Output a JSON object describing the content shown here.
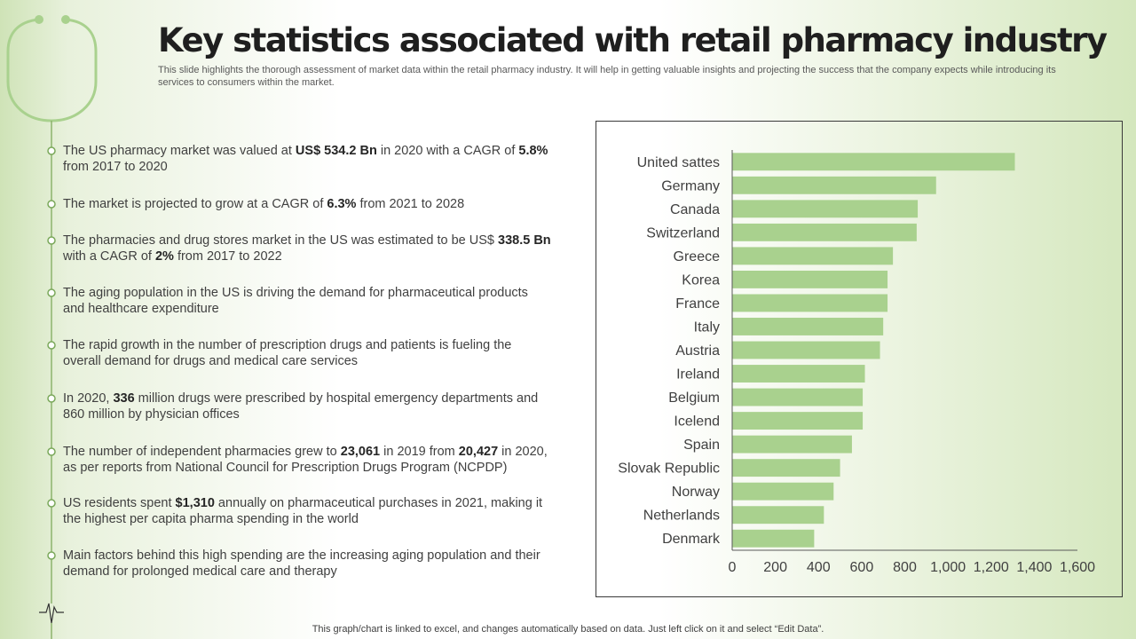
{
  "header": {
    "title": "Key statistics associated with retail pharmacy industry",
    "subtitle": "This slide highlights the thorough assessment of market data within the retail pharmacy industry. It will help in getting valuable insights and projecting the success that the company expects while introducing its services to consumers within the market."
  },
  "bullets": [
    {
      "parts": [
        {
          "t": "The US pharmacy market was valued at "
        },
        {
          "t": "US$ 534.2 Bn",
          "b": true
        },
        {
          "t": " in 2020 with a CAGR of "
        },
        {
          "t": "5.8%",
          "b": true
        },
        {
          "t": " from 2017 to 2020"
        }
      ]
    },
    {
      "parts": [
        {
          "t": "The market is projected to grow at a CAGR of "
        },
        {
          "t": "6.3%",
          "b": true
        },
        {
          "t": " from 2021 to 2028"
        }
      ]
    },
    {
      "parts": [
        {
          "t": "The pharmacies and drug stores market in the US was estimated to be US$ "
        },
        {
          "t": "338.5 Bn",
          "b": true
        },
        {
          "t": " with a CAGR of "
        },
        {
          "t": "2%",
          "b": true
        },
        {
          "t": " from 2017 to 2022"
        }
      ]
    },
    {
      "parts": [
        {
          "t": "The aging population in the US is driving the demand for pharmaceutical products and healthcare expenditure"
        }
      ]
    },
    {
      "parts": [
        {
          "t": "The rapid growth in the number of prescription drugs and patients is fueling the overall demand for drugs and medical care services"
        }
      ]
    },
    {
      "parts": [
        {
          "t": "In 2020, "
        },
        {
          "t": "336",
          "b": true
        },
        {
          "t": " million drugs were prescribed by hospital emergency departments and 860 million by physician offices"
        }
      ]
    },
    {
      "parts": [
        {
          "t": "The number of independent pharmacies grew to "
        },
        {
          "t": "23,061",
          "b": true
        },
        {
          "t": " in 2019 from "
        },
        {
          "t": "20,427",
          "b": true
        },
        {
          "t": " in 2020, as per reports from National Council for Prescription Drugs Program (NCPDP)"
        }
      ]
    },
    {
      "parts": [
        {
          "t": "US residents spent "
        },
        {
          "t": "$1,310",
          "b": true
        },
        {
          "t": " annually on pharmaceutical purchases in 2021, making it the highest per capita pharma spending in the world"
        }
      ]
    },
    {
      "parts": [
        {
          "t": "Main factors behind this high spending are the increasing aging population and their demand for prolonged medical care and therapy"
        }
      ]
    }
  ],
  "chart_data": {
    "type": "bar",
    "orientation": "horizontal",
    "title": "",
    "xlabel": "",
    "ylabel": "",
    "categories": [
      "United sattes",
      "Germany",
      "Canada",
      "Switzerland",
      "Greece",
      "Korea",
      "France",
      "Italy",
      "Austria",
      "Ireland",
      "Belgium",
      "Icelend",
      "Spain",
      "Slovak Republic",
      "Norway",
      "Netherlands",
      "Denmark"
    ],
    "values": [
      1310,
      945,
      860,
      855,
      745,
      720,
      720,
      700,
      685,
      615,
      605,
      605,
      555,
      500,
      470,
      425,
      380
    ],
    "xlim": [
      0,
      1600
    ],
    "xticks": [
      0,
      200,
      400,
      600,
      800,
      1000,
      1200,
      1400,
      1600
    ],
    "xtick_labels": [
      "0",
      "200",
      "400",
      "600",
      "800",
      "1,000",
      "1,200",
      "1,400",
      "1,600"
    ],
    "grid": false,
    "bar_color": "#a9d18e"
  },
  "footnote": "This graph/chart is linked to excel, and changes automatically based on data. Just left click on it and select “Edit Data”."
}
